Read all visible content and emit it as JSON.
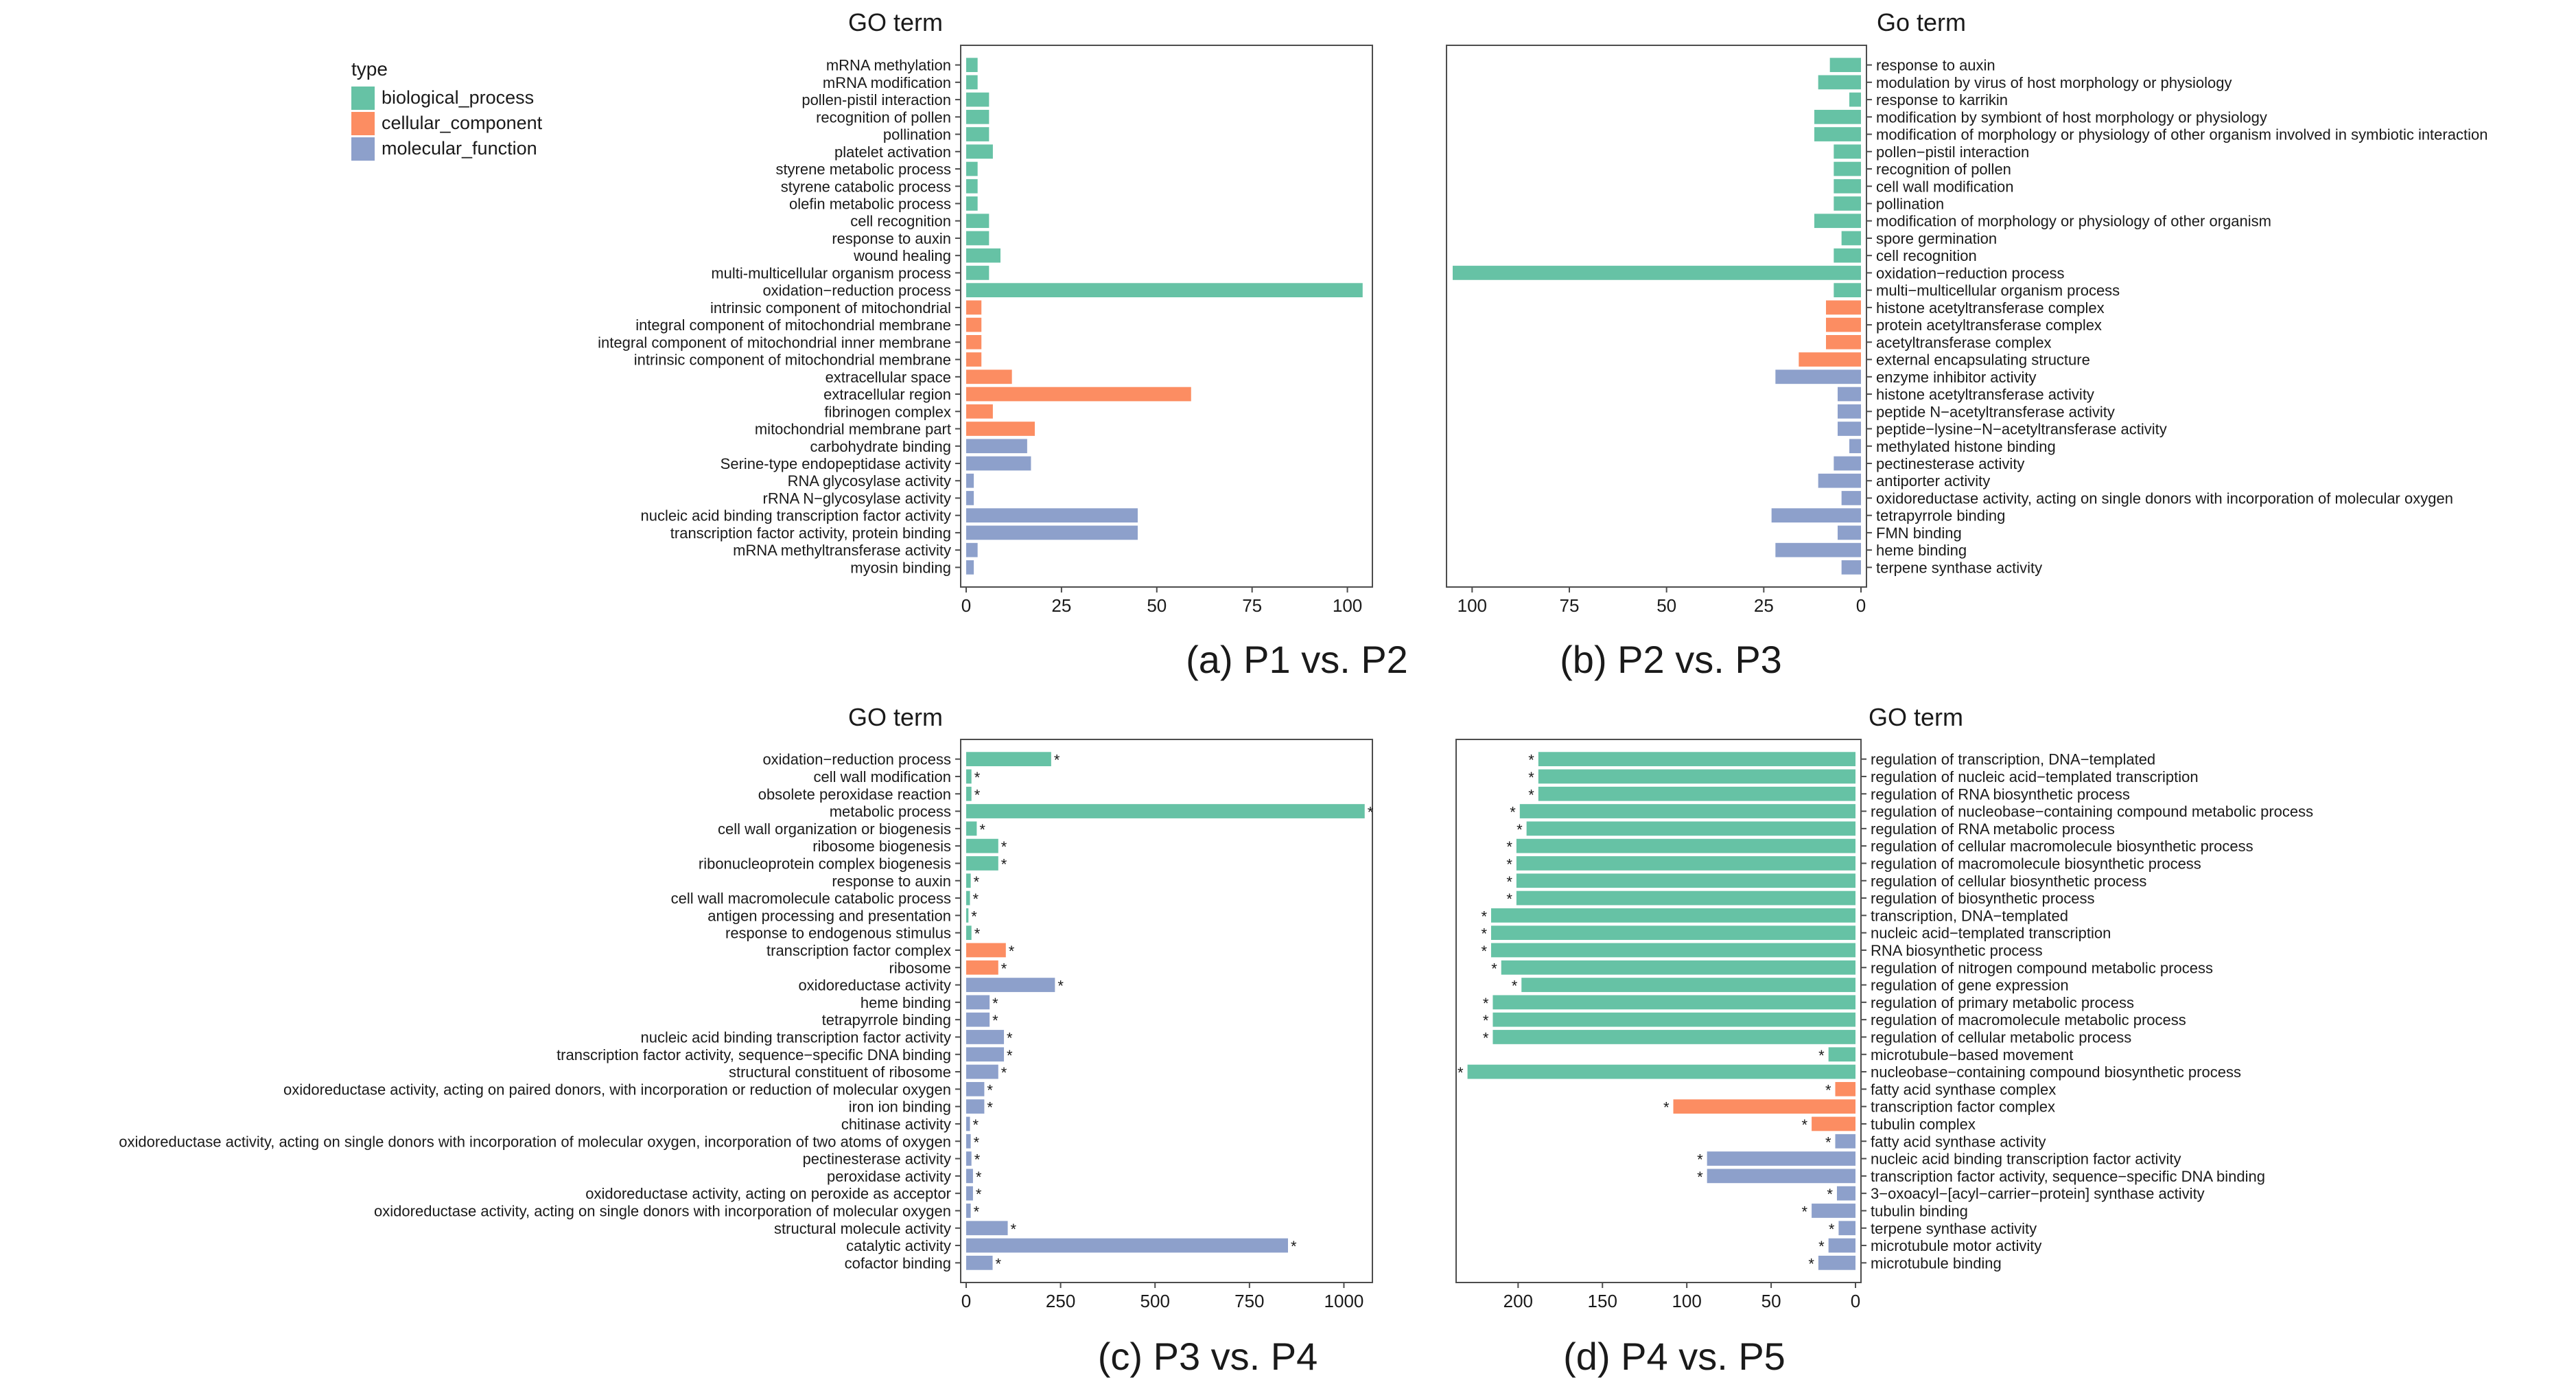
{
  "legend": {
    "title": "type",
    "items": [
      {
        "key": "BP",
        "label": "biological_process",
        "color": "#66c2a5"
      },
      {
        "key": "CC",
        "label": "cellular_component",
        "color": "#fc8d62"
      },
      {
        "key": "MF",
        "label": "molecular_function",
        "color": "#8da0cb"
      }
    ]
  },
  "chart_data": [
    {
      "type": "bar",
      "orientation": "horizontal",
      "id": "a",
      "title": "GO term",
      "caption": "(a) P1 vs. P2",
      "xlim": [
        0,
        108
      ],
      "xticks": [
        0,
        25,
        50,
        75,
        100
      ],
      "labels_side": "left",
      "reversed": false,
      "bars": [
        {
          "label": "mRNA methylation",
          "value": 3,
          "type": "BP"
        },
        {
          "label": "mRNA modification",
          "value": 3,
          "type": "BP"
        },
        {
          "label": "pollen-pistil interaction",
          "value": 6,
          "type": "BP"
        },
        {
          "label": "recognition of pollen",
          "value": 6,
          "type": "BP"
        },
        {
          "label": "pollination",
          "value": 6,
          "type": "BP"
        },
        {
          "label": "platelet activation",
          "value": 7,
          "type": "BP"
        },
        {
          "label": "styrene metabolic process",
          "value": 3,
          "type": "BP"
        },
        {
          "label": "styrene catabolic process",
          "value": 3,
          "type": "BP"
        },
        {
          "label": "olefin metabolic process",
          "value": 3,
          "type": "BP"
        },
        {
          "label": "cell recognition",
          "value": 6,
          "type": "BP"
        },
        {
          "label": "response to auxin",
          "value": 6,
          "type": "BP"
        },
        {
          "label": "wound healing",
          "value": 9,
          "type": "BP"
        },
        {
          "label": "multi-multicellular organism process",
          "value": 6,
          "type": "BP"
        },
        {
          "label": "oxidation−reduction process",
          "value": 104,
          "type": "BP"
        },
        {
          "label": "intrinsic component of mitochondrial",
          "value": 4,
          "type": "CC"
        },
        {
          "label": "integral component of mitochondrial membrane",
          "value": 4,
          "type": "CC"
        },
        {
          "label": "integral component of mitochondrial inner membrane",
          "value": 4,
          "type": "CC"
        },
        {
          "label": "intrinsic component of mitochondrial membrane",
          "value": 4,
          "type": "CC"
        },
        {
          "label": "extracellular space",
          "value": 12,
          "type": "CC"
        },
        {
          "label": "extracellular region",
          "value": 59,
          "type": "CC"
        },
        {
          "label": "fibrinogen complex",
          "value": 7,
          "type": "CC"
        },
        {
          "label": "mitochondrial membrane part",
          "value": 18,
          "type": "CC"
        },
        {
          "label": "carbohydrate binding",
          "value": 16,
          "type": "MF"
        },
        {
          "label": "Serine-type endopeptidase activity",
          "value": 17,
          "type": "MF"
        },
        {
          "label": "RNA glycosylase activity",
          "value": 2,
          "type": "MF"
        },
        {
          "label": "rRNA N−glycosylase activity",
          "value": 2,
          "type": "MF"
        },
        {
          "label": "nucleic acid binding transcription factor activity",
          "value": 45,
          "type": "MF"
        },
        {
          "label": "transcription factor activity, protein binding",
          "value": 45,
          "type": "MF"
        },
        {
          "label": "mRNA methyltransferase activity",
          "value": 3,
          "type": "MF"
        },
        {
          "label": "myosin binding",
          "value": 2,
          "type": "MF"
        }
      ]
    },
    {
      "type": "bar",
      "orientation": "horizontal",
      "id": "b",
      "title": "Go term",
      "caption": "(b) P2 vs. P3",
      "xlim": [
        0,
        108
      ],
      "xticks": [
        100,
        75,
        50,
        25,
        0
      ],
      "labels_side": "right",
      "reversed": true,
      "bars": [
        {
          "label": "response to auxin",
          "value": 8,
          "type": "BP"
        },
        {
          "label": "modulation by virus of host morphology or physiology",
          "value": 11,
          "type": "BP"
        },
        {
          "label": "response to karrikin",
          "value": 3,
          "type": "BP"
        },
        {
          "label": "modification by symbiont of host morphology or physiology",
          "value": 12,
          "type": "BP"
        },
        {
          "label": "modification of morphology or physiology of other organism involved in symbiotic interaction",
          "value": 12,
          "type": "BP"
        },
        {
          "label": "pollen−pistil interaction",
          "value": 7,
          "type": "BP"
        },
        {
          "label": "recognition of pollen",
          "value": 7,
          "type": "BP"
        },
        {
          "label": "cell wall modification",
          "value": 7,
          "type": "BP"
        },
        {
          "label": "pollination",
          "value": 7,
          "type": "BP"
        },
        {
          "label": "modification of morphology or physiology of other organism",
          "value": 12,
          "type": "BP"
        },
        {
          "label": "spore germination",
          "value": 5,
          "type": "BP"
        },
        {
          "label": "cell recognition",
          "value": 7,
          "type": "BP"
        },
        {
          "label": "oxidation−reduction process",
          "value": 105,
          "type": "BP"
        },
        {
          "label": "multi−multicellular organism process",
          "value": 7,
          "type": "BP"
        },
        {
          "label": "histone acetyltransferase complex",
          "value": 9,
          "type": "CC"
        },
        {
          "label": "protein acetyltransferase complex",
          "value": 9,
          "type": "CC"
        },
        {
          "label": "acetyltransferase complex",
          "value": 9,
          "type": "CC"
        },
        {
          "label": "external encapsulating structure",
          "value": 16,
          "type": "CC"
        },
        {
          "label": "enzyme inhibitor activity",
          "value": 22,
          "type": "MF"
        },
        {
          "label": "histone acetyltransferase activity",
          "value": 6,
          "type": "MF"
        },
        {
          "label": "peptide N−acetyltransferase activity",
          "value": 6,
          "type": "MF"
        },
        {
          "label": "peptide−lysine−N−acetyltransferase activity",
          "value": 6,
          "type": "MF"
        },
        {
          "label": "methylated histone binding",
          "value": 3,
          "type": "MF"
        },
        {
          "label": "pectinesterase activity",
          "value": 7,
          "type": "MF"
        },
        {
          "label": "antiporter activity",
          "value": 11,
          "type": "MF"
        },
        {
          "label": "oxidoreductase activity, acting on single donors with incorporation of molecular oxygen",
          "value": 5,
          "type": "MF"
        },
        {
          "label": "tetrapyrrole binding",
          "value": 23,
          "type": "MF"
        },
        {
          "label": "FMN binding",
          "value": 6,
          "type": "MF"
        },
        {
          "label": "heme binding",
          "value": 22,
          "type": "MF"
        },
        {
          "label": "terpene synthase activity",
          "value": 5,
          "type": "MF"
        }
      ]
    },
    {
      "type": "bar",
      "orientation": "horizontal",
      "id": "c",
      "title": "GO term",
      "caption": "(c) P3 vs. P4",
      "xlim": [
        0,
        1090
      ],
      "xticks": [
        0,
        250,
        500,
        750,
        1000
      ],
      "labels_side": "left",
      "reversed": false,
      "significance_marker": "*",
      "bars": [
        {
          "label": "oxidation−reduction process",
          "value": 225,
          "type": "BP"
        },
        {
          "label": "cell wall modification",
          "value": 14,
          "type": "BP"
        },
        {
          "label": "obsolete peroxidase reaction",
          "value": 14,
          "type": "BP"
        },
        {
          "label": "metabolic process",
          "value": 1055,
          "type": "BP"
        },
        {
          "label": "cell wall organization or biogenesis",
          "value": 28,
          "type": "BP"
        },
        {
          "label": "ribosome biogenesis",
          "value": 85,
          "type": "BP"
        },
        {
          "label": "ribonucleoprotein complex biogenesis",
          "value": 85,
          "type": "BP"
        },
        {
          "label": "response to auxin",
          "value": 12,
          "type": "BP"
        },
        {
          "label": "cell wall macromolecule catabolic process",
          "value": 10,
          "type": "BP"
        },
        {
          "label": "antigen processing and presentation",
          "value": 6,
          "type": "BP"
        },
        {
          "label": "response to endogenous stimulus",
          "value": 14,
          "type": "BP"
        },
        {
          "label": "transcription factor complex",
          "value": 105,
          "type": "CC"
        },
        {
          "label": "ribosome",
          "value": 85,
          "type": "CC"
        },
        {
          "label": "oxidoreductase activity",
          "value": 235,
          "type": "MF"
        },
        {
          "label": "heme binding",
          "value": 62,
          "type": "MF"
        },
        {
          "label": "tetrapyrrole binding",
          "value": 62,
          "type": "MF"
        },
        {
          "label": "nucleic acid binding transcription factor activity",
          "value": 100,
          "type": "MF"
        },
        {
          "label": "transcription factor activity, sequence−specific DNA binding",
          "value": 100,
          "type": "MF"
        },
        {
          "label": "structural constituent of ribosome",
          "value": 85,
          "type": "MF"
        },
        {
          "label": "oxidoreductase activity, acting on paired donors, with incorporation or reduction of molecular oxygen",
          "value": 48,
          "type": "MF"
        },
        {
          "label": "iron ion binding",
          "value": 48,
          "type": "MF"
        },
        {
          "label": "chitinase activity",
          "value": 10,
          "type": "MF"
        },
        {
          "label": "oxidoreductase activity, acting on single donors with incorporation of molecular oxygen, incorporation of two atoms of oxygen",
          "value": 12,
          "type": "MF"
        },
        {
          "label": "pectinesterase activity",
          "value": 14,
          "type": "MF"
        },
        {
          "label": "peroxidase activity",
          "value": 18,
          "type": "MF"
        },
        {
          "label": "oxidoreductase activity, acting on peroxide as acceptor",
          "value": 18,
          "type": "MF"
        },
        {
          "label": "oxidoreductase activity, acting on single donors with incorporation of molecular oxygen",
          "value": 12,
          "type": "MF"
        },
        {
          "label": "structural molecule activity",
          "value": 110,
          "type": "MF"
        },
        {
          "label": "catalytic activity",
          "value": 852,
          "type": "MF"
        },
        {
          "label": "cofactor binding",
          "value": 70,
          "type": "MF"
        }
      ]
    },
    {
      "type": "bar",
      "orientation": "horizontal",
      "id": "d",
      "title": "GO term",
      "caption": "(d) P4 vs. P5",
      "xlim": [
        0,
        240
      ],
      "xticks": [
        200,
        150,
        100,
        50,
        0
      ],
      "labels_side": "right",
      "reversed": true,
      "significance_marker": "*",
      "bars": [
        {
          "label": "regulation of transcription, DNA−templated",
          "value": 188,
          "type": "BP"
        },
        {
          "label": "regulation of nucleic acid−templated transcription",
          "value": 188,
          "type": "BP"
        },
        {
          "label": "regulation of RNA biosynthetic process",
          "value": 188,
          "type": "BP"
        },
        {
          "label": "regulation of nucleobase−containing compound metabolic process",
          "value": 199,
          "type": "BP"
        },
        {
          "label": "regulation of RNA metabolic process",
          "value": 195,
          "type": "BP"
        },
        {
          "label": "regulation of cellular macromolecule biosynthetic process",
          "value": 201,
          "type": "BP"
        },
        {
          "label": "regulation of macromolecule biosynthetic process",
          "value": 201,
          "type": "BP"
        },
        {
          "label": "regulation of cellular biosynthetic process",
          "value": 201,
          "type": "BP"
        },
        {
          "label": "regulation of biosynthetic process",
          "value": 201,
          "type": "BP"
        },
        {
          "label": "transcription, DNA−templated",
          "value": 216,
          "type": "BP"
        },
        {
          "label": "nucleic acid−templated transcription",
          "value": 216,
          "type": "BP"
        },
        {
          "label": "RNA biosynthetic process",
          "value": 216,
          "type": "BP"
        },
        {
          "label": "regulation of nitrogen compound metabolic process",
          "value": 210,
          "type": "BP"
        },
        {
          "label": "regulation of gene expression",
          "value": 198,
          "type": "BP"
        },
        {
          "label": "regulation of primary metabolic process",
          "value": 215,
          "type": "BP"
        },
        {
          "label": "regulation of macromolecule metabolic process",
          "value": 215,
          "type": "BP"
        },
        {
          "label": "regulation of cellular metabolic process",
          "value": 215,
          "type": "BP"
        },
        {
          "label": "microtubule−based movement",
          "value": 16,
          "type": "BP"
        },
        {
          "label": "nucleobase−containing compound biosynthetic process",
          "value": 230,
          "type": "BP"
        },
        {
          "label": "fatty acid synthase complex",
          "value": 12,
          "type": "CC"
        },
        {
          "label": "transcription factor complex",
          "value": 108,
          "type": "CC"
        },
        {
          "label": "tubulin complex",
          "value": 26,
          "type": "CC"
        },
        {
          "label": "fatty acid synthase activity",
          "value": 12,
          "type": "MF"
        },
        {
          "label": "nucleic acid binding transcription factor activity",
          "value": 88,
          "type": "MF"
        },
        {
          "label": "transcription factor activity, sequence−specific DNA binding",
          "value": 88,
          "type": "MF"
        },
        {
          "label": "3−oxoacyl−[acyl−carrier−protein] synthase activity",
          "value": 11,
          "type": "MF"
        },
        {
          "label": "tubulin binding",
          "value": 26,
          "type": "MF"
        },
        {
          "label": "terpene synthase activity",
          "value": 10,
          "type": "MF"
        },
        {
          "label": "microtubule motor activity",
          "value": 16,
          "type": "MF"
        },
        {
          "label": "microtubule binding",
          "value": 22,
          "type": "MF"
        }
      ]
    }
  ]
}
